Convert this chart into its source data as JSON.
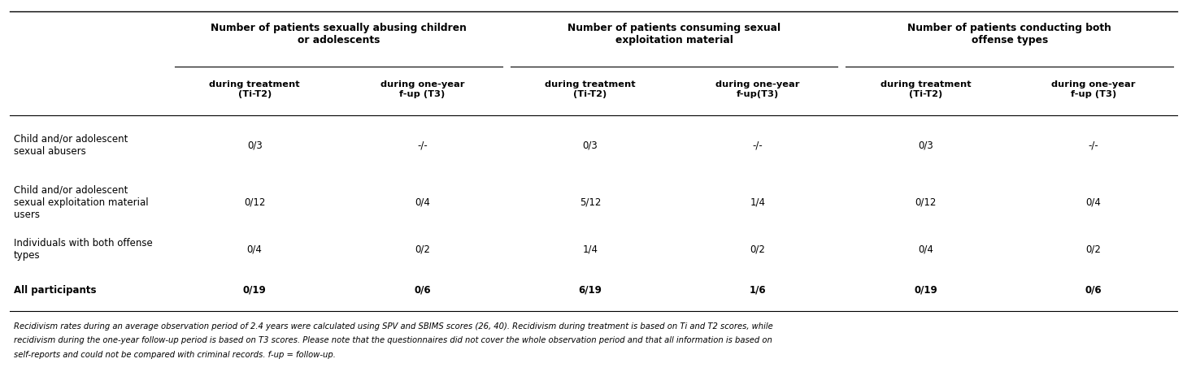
{
  "top_headers": [
    "Number of patients sexually abusing children\nor adolescents",
    "Number of patients consuming sexual\nexploitation material",
    "Number of patients conducting both\noffense types"
  ],
  "sub_headers": [
    "during treatment\n(Ti-T2)",
    "during one-year\nf-up (T3)",
    "during treatment\n(Ti-T2)",
    "during one-year\nf-up(T3)",
    "during treatment\n(Ti-T2)",
    "during one-year\nf-up (T3)"
  ],
  "row_labels": [
    "Child and/or adolescent\nsexual abusers",
    "Child and/or adolescent\nsexual exploitation material\nusers",
    "Individuals with both offense\ntypes",
    "All participants"
  ],
  "row_bold": [
    false,
    false,
    false,
    true
  ],
  "cell_data": [
    [
      "0/3",
      "-/-",
      "0/3",
      "-/-",
      "0/3",
      "-/-"
    ],
    [
      "0/12",
      "0/4",
      "5/12",
      "1/4",
      "0/12",
      "0/4"
    ],
    [
      "0/4",
      "0/2",
      "1/4",
      "0/2",
      "0/4",
      "0/2"
    ],
    [
      "0/19",
      "0/6",
      "6/19",
      "1/6",
      "0/19",
      "0/6"
    ]
  ],
  "footnote_lines": [
    "Recidivism rates during an average observation period of 2.4 years were calculated using SPV and SBIMS scores (26, 40). Recidivism during treatment is based on Ti and T2 scores, while",
    "recidivism during the one-year follow-up period is based on T3 scores. Please note that the questionnaires did not cover the whole observation period and that all information is based on",
    "self-reports and could not be compared with criminal records. f-up = follow-up."
  ],
  "bg_color": "#ffffff",
  "line_color": "#000000",
  "text_color": "#000000"
}
